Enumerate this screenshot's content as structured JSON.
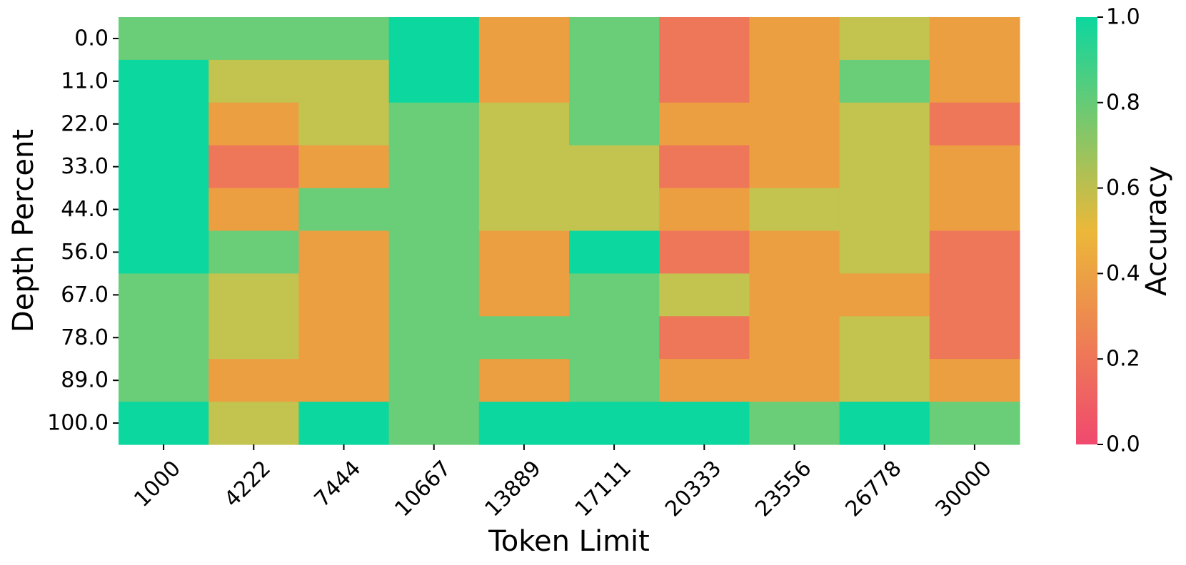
{
  "chart_data": {
    "type": "heatmap",
    "title": "",
    "xlabel": "Token Limit",
    "ylabel": "Depth Percent",
    "x": [
      "1000",
      "4222",
      "7444",
      "10667",
      "13889",
      "17111",
      "20333",
      "23556",
      "26778",
      "30000"
    ],
    "y": [
      "0.0",
      "11.0",
      "22.0",
      "33.0",
      "44.0",
      "56.0",
      "67.0",
      "78.0",
      "89.0",
      "100.0"
    ],
    "values": [
      [
        0.8,
        0.8,
        0.8,
        1.0,
        0.4,
        0.8,
        0.2,
        0.4,
        0.6,
        0.4
      ],
      [
        1.0,
        0.6,
        0.6,
        1.0,
        0.4,
        0.8,
        0.2,
        0.4,
        0.8,
        0.4
      ],
      [
        1.0,
        0.4,
        0.6,
        0.8,
        0.6,
        0.8,
        0.4,
        0.4,
        0.6,
        0.2
      ],
      [
        1.0,
        0.2,
        0.4,
        0.8,
        0.6,
        0.6,
        0.2,
        0.4,
        0.6,
        0.4
      ],
      [
        1.0,
        0.4,
        0.8,
        0.8,
        0.6,
        0.6,
        0.4,
        0.6,
        0.6,
        0.4
      ],
      [
        1.0,
        0.8,
        0.4,
        0.8,
        0.4,
        1.0,
        0.2,
        0.4,
        0.6,
        0.2
      ],
      [
        0.8,
        0.6,
        0.4,
        0.8,
        0.4,
        0.8,
        0.6,
        0.4,
        0.4,
        0.2
      ],
      [
        0.8,
        0.6,
        0.4,
        0.8,
        0.8,
        0.8,
        0.2,
        0.4,
        0.6,
        0.2
      ],
      [
        0.8,
        0.4,
        0.4,
        0.8,
        0.4,
        0.8,
        0.4,
        0.4,
        0.6,
        0.4
      ],
      [
        1.0,
        0.6,
        1.0,
        0.8,
        1.0,
        1.0,
        1.0,
        0.8,
        1.0,
        0.8
      ]
    ],
    "colorbar": {
      "label": "Accuracy",
      "range": [
        0.0,
        1.0
      ],
      "ticks": [
        "0.0",
        "0.2",
        "0.4",
        "0.6",
        "0.8",
        "1.0"
      ]
    },
    "colormap": [
      "#F0496E",
      "#EBB839",
      "#0CD79F"
    ],
    "cell_colors": {
      "0.2": "#EE7659",
      "0.4": "#EC9F41",
      "0.6": "#C3C350",
      "0.8": "#6ACD78",
      "1.0": "#0CD79F"
    },
    "grid": false
  }
}
